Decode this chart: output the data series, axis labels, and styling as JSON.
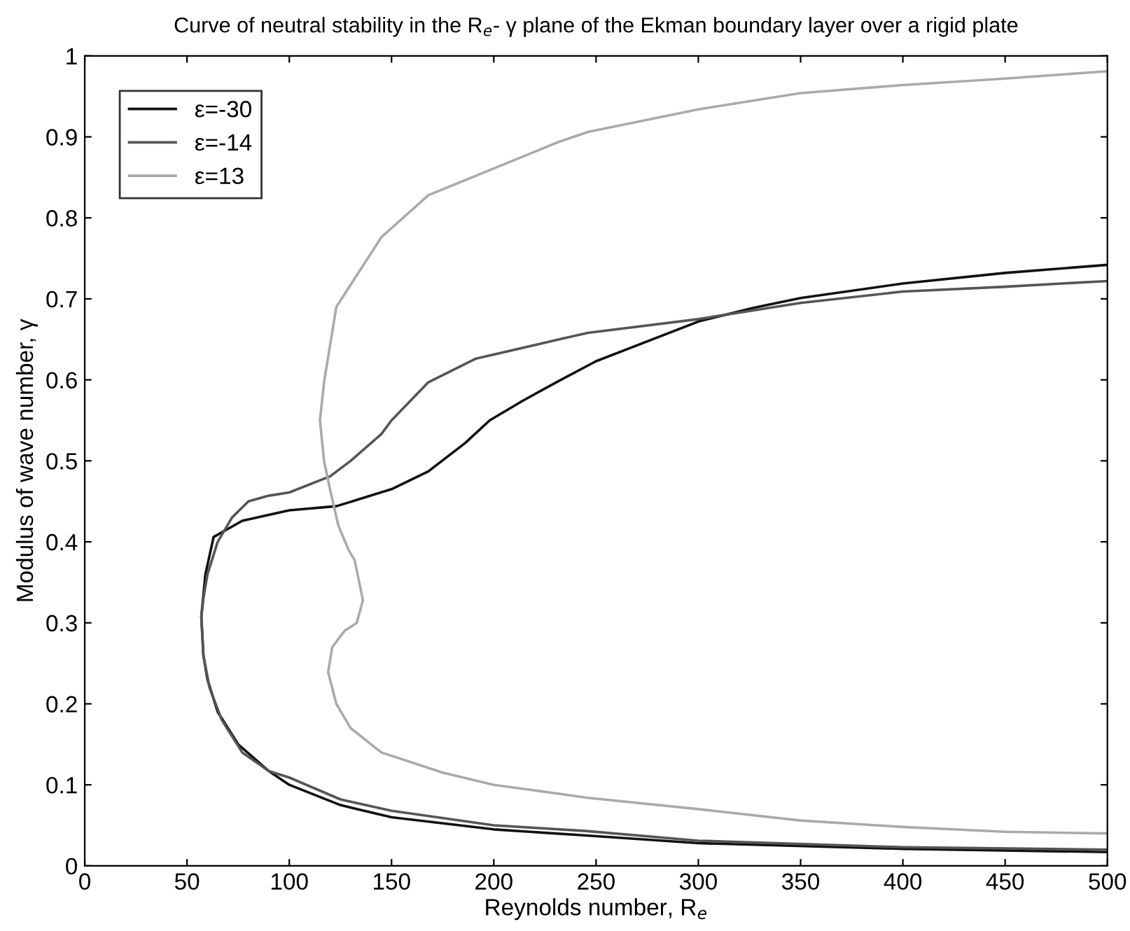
{
  "chart_data": {
    "type": "line",
    "title": "Curve of neutral stability in the R$_{e}$- γ plane of the Ekman boundary layer over a rigid plate",
    "xlabel": "Reynolds number, R$_{e}$",
    "ylabel": "Modulus of wave number, γ",
    "xlim": [
      0,
      500
    ],
    "ylim": [
      0,
      1
    ],
    "xticks": [
      0,
      50,
      100,
      150,
      200,
      250,
      300,
      350,
      400,
      450,
      500
    ],
    "yticks": [
      0,
      0.1,
      0.2,
      0.3,
      0.4,
      0.5,
      0.6,
      0.7,
      0.8,
      0.9,
      1
    ],
    "grid": false,
    "legend": "top left",
    "marker": "none",
    "line_style": "solid",
    "series": [
      {
        "name": "ε=-30",
        "color": "#111111",
        "x": [
          500,
          450,
          400,
          350,
          327,
          300,
          250,
          232,
          214,
          198,
          186,
          168,
          150,
          123,
          100,
          77,
          63,
          59,
          57,
          58,
          60,
          65,
          75,
          90,
          100,
          125,
          150,
          200,
          245,
          300,
          400,
          500
        ],
        "values": [
          0.742,
          0.732,
          0.719,
          0.701,
          0.689,
          0.672,
          0.623,
          0.599,
          0.574,
          0.55,
          0.522,
          0.487,
          0.465,
          0.444,
          0.439,
          0.426,
          0.406,
          0.36,
          0.308,
          0.26,
          0.23,
          0.19,
          0.15,
          0.117,
          0.1,
          0.075,
          0.06,
          0.045,
          0.0375,
          0.028,
          0.021,
          0.017
        ]
      },
      {
        "name": "ε=-14",
        "color": "#555555",
        "x": [
          500,
          450,
          400,
          350,
          300,
          246,
          232,
          191,
          168,
          150,
          145,
          130,
          120,
          100,
          90,
          80,
          72,
          65,
          60,
          58,
          57,
          58,
          61,
          67,
          77,
          90,
          100,
          125,
          150,
          200,
          245,
          300,
          400,
          500
        ],
        "values": [
          0.722,
          0.715,
          0.709,
          0.695,
          0.675,
          0.658,
          0.65,
          0.626,
          0.597,
          0.55,
          0.533,
          0.5,
          0.481,
          0.461,
          0.457,
          0.45,
          0.43,
          0.4,
          0.36,
          0.33,
          0.308,
          0.26,
          0.22,
          0.18,
          0.14,
          0.117,
          0.109,
          0.082,
          0.068,
          0.05,
          0.043,
          0.031,
          0.023,
          0.02
        ]
      },
      {
        "name": "ε=13",
        "color": "#aaaaaa",
        "x": [
          500,
          450,
          400,
          350,
          300,
          246,
          232,
          168,
          145,
          123,
          117,
          115,
          117,
          120,
          124,
          129,
          132,
          136,
          133,
          127,
          121,
          119,
          123,
          130,
          145,
          175,
          200,
          232,
          246,
          300,
          350,
          400,
          450,
          500
        ],
        "values": [
          0.981,
          0.972,
          0.964,
          0.954,
          0.934,
          0.906,
          0.894,
          0.828,
          0.776,
          0.69,
          0.597,
          0.55,
          0.5,
          0.464,
          0.42,
          0.39,
          0.377,
          0.328,
          0.3,
          0.29,
          0.27,
          0.239,
          0.2,
          0.17,
          0.14,
          0.115,
          0.1,
          0.089,
          0.084,
          0.07,
          0.056,
          0.048,
          0.042,
          0.04
        ]
      }
    ]
  }
}
